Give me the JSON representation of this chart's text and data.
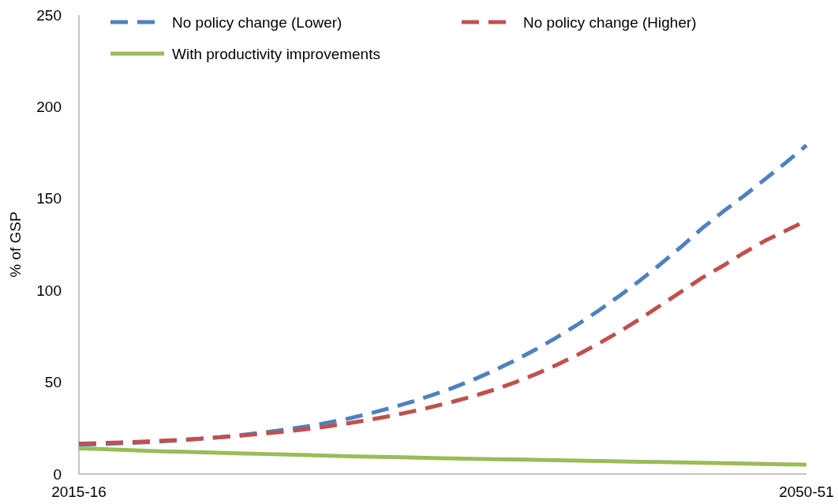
{
  "chart_data": {
    "type": "line",
    "ylabel": "% of GSP",
    "categories": [
      "2015-16",
      null,
      null,
      null,
      null,
      null,
      null,
      null,
      null,
      null,
      null,
      null,
      null,
      null,
      null,
      null,
      null,
      null,
      null,
      null,
      null,
      null,
      null,
      null,
      null,
      null,
      null,
      null,
      null,
      null,
      null,
      null,
      null,
      null,
      null,
      "2050-51"
    ],
    "ylim": [
      0,
      250
    ],
    "yticks": [
      0,
      50,
      100,
      150,
      200,
      250
    ],
    "grid": false,
    "legend": "top left",
    "series": [
      {
        "name": "No policy change (Lower)",
        "color": "#4f81bd",
        "line_style": "dashed",
        "values": [
          16,
          16.3,
          16.7,
          17.2,
          17.8,
          18.5,
          19.3,
          20.3,
          21.5,
          22.8,
          24.3,
          26,
          28,
          30.3,
          33,
          36,
          39.3,
          43,
          47,
          51.5,
          56.5,
          62,
          68,
          74.5,
          81.5,
          89,
          97,
          105.5,
          114.5,
          124,
          134,
          143,
          151.5,
          160.5,
          169.5,
          179
        ]
      },
      {
        "name": "No policy change (Higher)",
        "color": "#c0504d",
        "line_style": "dashed",
        "values": [
          16.5,
          16.8,
          17.2,
          17.6,
          18.1,
          18.7,
          19.4,
          20.2,
          21.1,
          22.1,
          23.2,
          24.5,
          26,
          27.7,
          29.6,
          31.7,
          34,
          36.6,
          39.4,
          42.5,
          46,
          50,
          54.5,
          59.5,
          65,
          71,
          77.5,
          84.5,
          92,
          99.5,
          107,
          113.5,
          120.5,
          127,
          132.5,
          138
        ]
      },
      {
        "name": "With productivity improvements",
        "color": "#9bbb59",
        "line_style": "solid",
        "values": [
          14,
          13.6,
          13.2,
          12.8,
          12.4,
          12.1,
          11.8,
          11.5,
          11.2,
          10.9,
          10.6,
          10.3,
          10,
          9.7,
          9.5,
          9.2,
          9,
          8.7,
          8.5,
          8.3,
          8.1,
          7.9,
          7.7,
          7.5,
          7.3,
          7.1,
          6.9,
          6.7,
          6.5,
          6.3,
          6.1,
          5.9,
          5.7,
          5.5,
          5.3,
          5.1
        ]
      }
    ]
  }
}
